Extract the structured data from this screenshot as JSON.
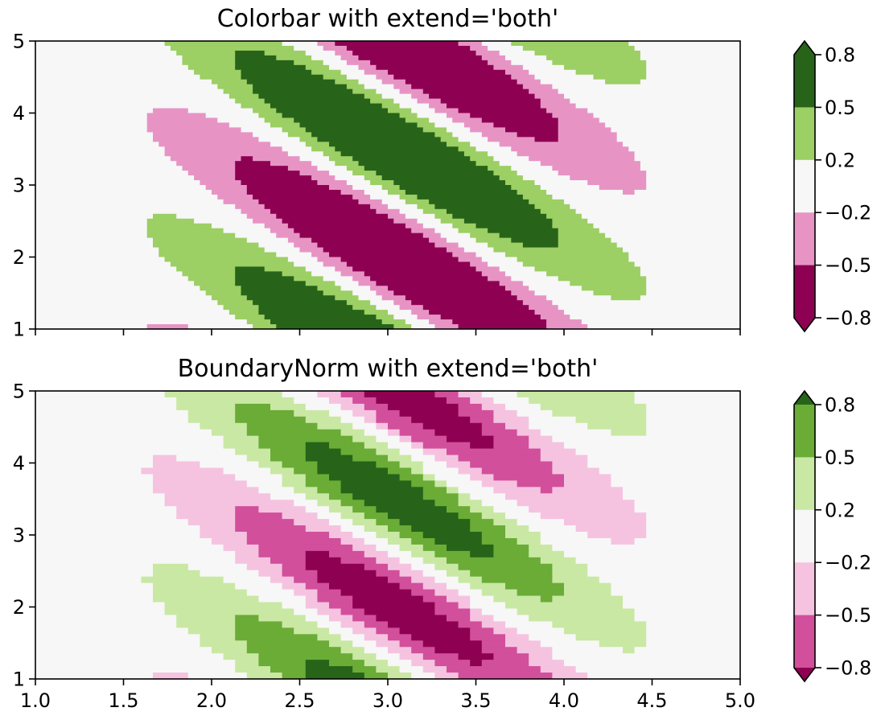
{
  "chart_data": [
    {
      "type": "heatmap",
      "title": "Colorbar with extend='both'",
      "xlim": [
        1.0,
        5.0
      ],
      "ylim": [
        1,
        5
      ],
      "x_ticks": [
        "1.0",
        "1.5",
        "2.0",
        "2.5",
        "3.0",
        "3.5",
        "4.0",
        "4.5",
        "5.0"
      ],
      "x_ticks_labeled": false,
      "y_ticks": [
        "1",
        "2",
        "3",
        "4",
        "5"
      ],
      "colorbar": {
        "boundaries": [
          -0.8,
          -0.5,
          -0.2,
          0.2,
          0.5,
          0.8
        ],
        "tick_labels": [
          "−0.8",
          "−0.5",
          "−0.2",
          "0.2",
          "0.5",
          "0.8"
        ],
        "colors": [
          "#8e0152",
          "#e794c5",
          "#f7f7f7",
          "#9ccf64",
          "#276419"
        ],
        "extend": "both",
        "under_color": "#8e0152",
        "over_color": "#276419"
      }
    },
    {
      "type": "heatmap",
      "title": "BoundaryNorm with extend='both'",
      "xlim": [
        1.0,
        5.0
      ],
      "ylim": [
        1,
        5
      ],
      "x_ticks": [
        "1.0",
        "1.5",
        "2.0",
        "2.5",
        "3.0",
        "3.5",
        "4.0",
        "4.5",
        "5.0"
      ],
      "x_ticks_labeled": true,
      "y_ticks": [
        "1",
        "2",
        "3",
        "4",
        "5"
      ],
      "colorbar": {
        "boundaries": [
          -0.8,
          -0.5,
          -0.2,
          0.2,
          0.5,
          0.8
        ],
        "tick_labels": [
          "−0.8",
          "−0.5",
          "−0.2",
          "0.2",
          "0.5",
          "0.8"
        ],
        "colors": [
          "#d24f9c",
          "#f5c3e0",
          "#f7f7f7",
          "#c9e8a4",
          "#6aac36"
        ],
        "extend": "both",
        "under_color": "#8e0152",
        "over_color": "#276419"
      }
    }
  ]
}
